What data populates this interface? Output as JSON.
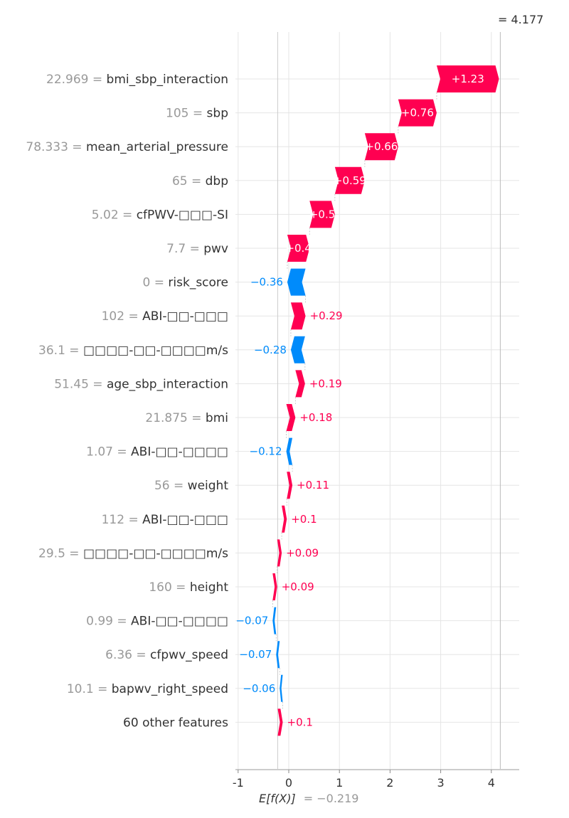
{
  "chart_data": {
    "type": "waterfall",
    "base_value_label": "E[f(X)]",
    "base_value_text": "= −0.219",
    "base_value": -0.219,
    "output_value_text": "= 4.177",
    "output_value": 4.177,
    "xlim": [
      -1,
      4.4
    ],
    "x_ticks": [
      -1,
      0,
      1,
      2,
      3,
      4
    ],
    "x_tick_labels": [
      "-1",
      "0",
      "1",
      "2",
      "3",
      "4"
    ],
    "grid": true,
    "colors": {
      "positive": "#ff0051",
      "negative": "#008bfb",
      "axis": "#cccccc",
      "grid": "#e5e5e5"
    },
    "features": [
      {
        "value": "22.969 =",
        "name": "bmi_sbp_interaction",
        "shap": 1.23,
        "label": "+1.23",
        "inside": true
      },
      {
        "value": "105 =",
        "name": "sbp",
        "shap": 0.76,
        "label": "+0.76",
        "inside": true
      },
      {
        "value": "78.333 =",
        "name": "mean_arterial_pressure",
        "shap": 0.66,
        "label": "+0.66",
        "inside": true
      },
      {
        "value": "65 =",
        "name": "dbp",
        "shap": 0.59,
        "label": "+0.59",
        "inside": true
      },
      {
        "value": "5.02 =",
        "name": "cfPWV-□□□-SI",
        "shap": 0.5,
        "label": "+0.5",
        "inside": true
      },
      {
        "value": "7.7 =",
        "name": "pwv",
        "shap": 0.44,
        "label": "+0.4",
        "inside": true
      },
      {
        "value": "0 =",
        "name": "risk_score",
        "shap": -0.36,
        "label": "−0.36",
        "inside": false
      },
      {
        "value": "102 =",
        "name": "ABI-□□-□□□",
        "shap": 0.29,
        "label": "+0.29",
        "inside": false
      },
      {
        "value": "36.1 =",
        "name": "□□□□-□□-□□□□m/s",
        "shap": -0.28,
        "label": "−0.28",
        "inside": false
      },
      {
        "value": "51.45 =",
        "name": "age_sbp_interaction",
        "shap": 0.19,
        "label": "+0.19",
        "inside": false
      },
      {
        "value": "21.875 =",
        "name": "bmi",
        "shap": 0.18,
        "label": "+0.18",
        "inside": false
      },
      {
        "value": "1.07 =",
        "name": "ABI-□□-□□□□",
        "shap": -0.12,
        "label": "−0.12",
        "inside": false
      },
      {
        "value": "56 =",
        "name": "weight",
        "shap": 0.11,
        "label": "+0.11",
        "inside": false
      },
      {
        "value": "112 =",
        "name": "ABI-□□-□□□",
        "shap": 0.1,
        "label": "+0.1",
        "inside": false
      },
      {
        "value": "29.5 =",
        "name": "□□□□-□□-□□□□m/s",
        "shap": 0.09,
        "label": "+0.09",
        "inside": false
      },
      {
        "value": "160 =",
        "name": "height",
        "shap": 0.09,
        "label": "+0.09",
        "inside": false
      },
      {
        "value": "0.99 =",
        "name": "ABI-□□-□□□□",
        "shap": -0.07,
        "label": "−0.07",
        "inside": false
      },
      {
        "value": "6.36 =",
        "name": "cfpwv_speed",
        "shap": -0.07,
        "label": "−0.07",
        "inside": false
      },
      {
        "value": "10.1 =",
        "name": "bapwv_right_speed",
        "shap": -0.06,
        "label": "−0.06",
        "inside": false
      },
      {
        "value": "",
        "name": "60 other features",
        "shap": 0.1,
        "label": "+0.1",
        "inside": false
      }
    ]
  }
}
